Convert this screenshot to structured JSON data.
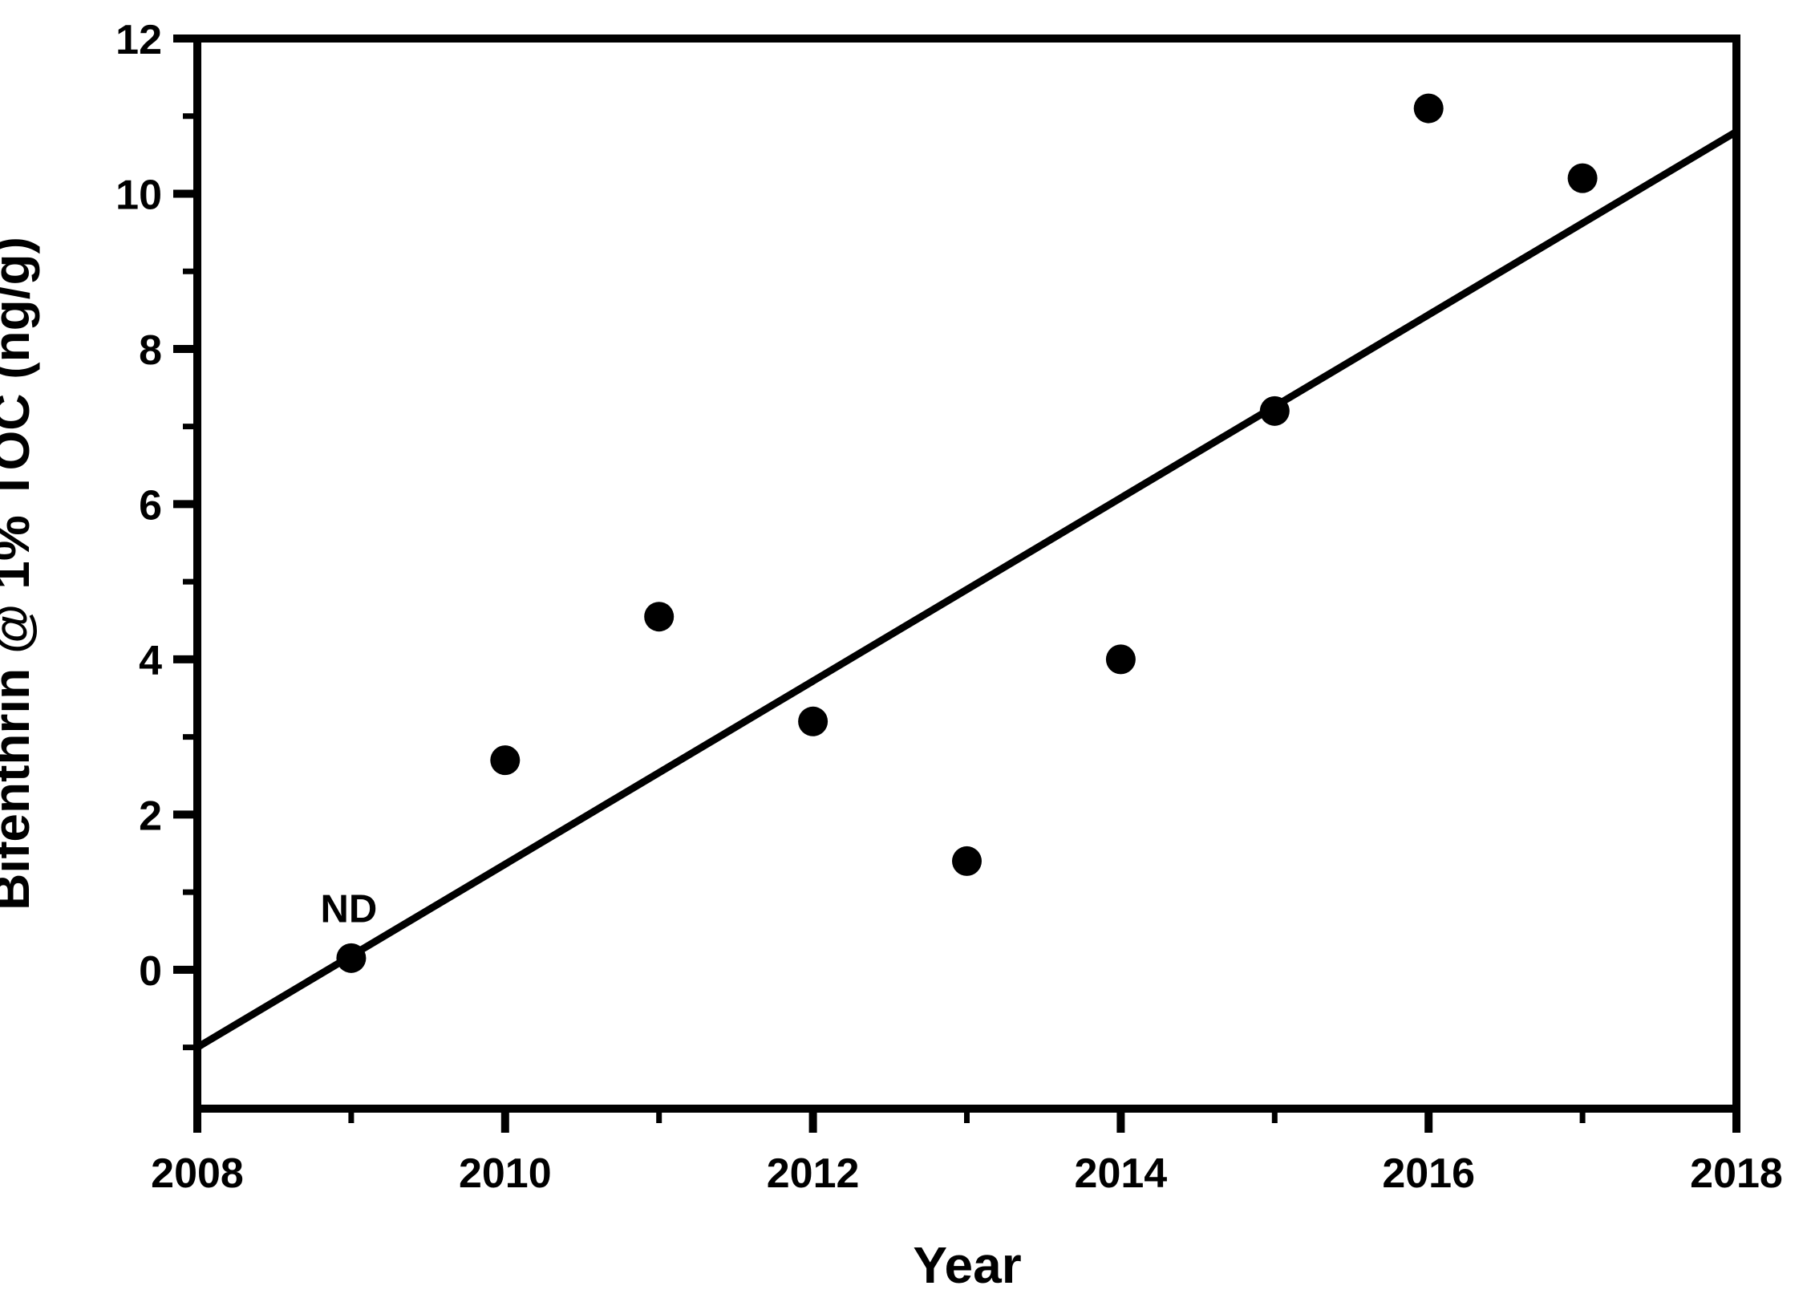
{
  "chart_data": {
    "type": "scatter",
    "title": "",
    "xlabel": "Year",
    "ylabel": "Bifenthrin @ 1% TOC (ng/g)",
    "xlim": [
      2008,
      2018
    ],
    "ylim": [
      -1.79,
      12
    ],
    "grid": false,
    "legend_position": "none",
    "x_major_ticks": [
      2008,
      2010,
      2012,
      2014,
      2016,
      2018
    ],
    "x_minor_ticks": [
      2009,
      2011,
      2013,
      2015,
      2017
    ],
    "y_major_ticks": [
      0,
      2,
      4,
      6,
      8,
      10,
      12
    ],
    "y_minor_ticks": [
      -1,
      1,
      3,
      5,
      7,
      9,
      11
    ],
    "x": [
      2009,
      2010,
      2011,
      2012,
      2013,
      2014,
      2015,
      2016,
      2017
    ],
    "values": [
      0.15,
      2.7,
      4.55,
      3.2,
      1.4,
      4.0,
      7.2,
      11.1,
      10.2
    ],
    "annotation": {
      "text": "ND",
      "x": 2009,
      "y": 0.15
    },
    "trendline": {
      "x1": 2008,
      "y1": -1.0,
      "x2": 2018,
      "y2": 10.8
    },
    "marker": {
      "shape": "circle",
      "radius_px": 18.5,
      "color": "#000000"
    },
    "colors": {
      "foreground": "#000000",
      "background": "#ffffff"
    }
  }
}
